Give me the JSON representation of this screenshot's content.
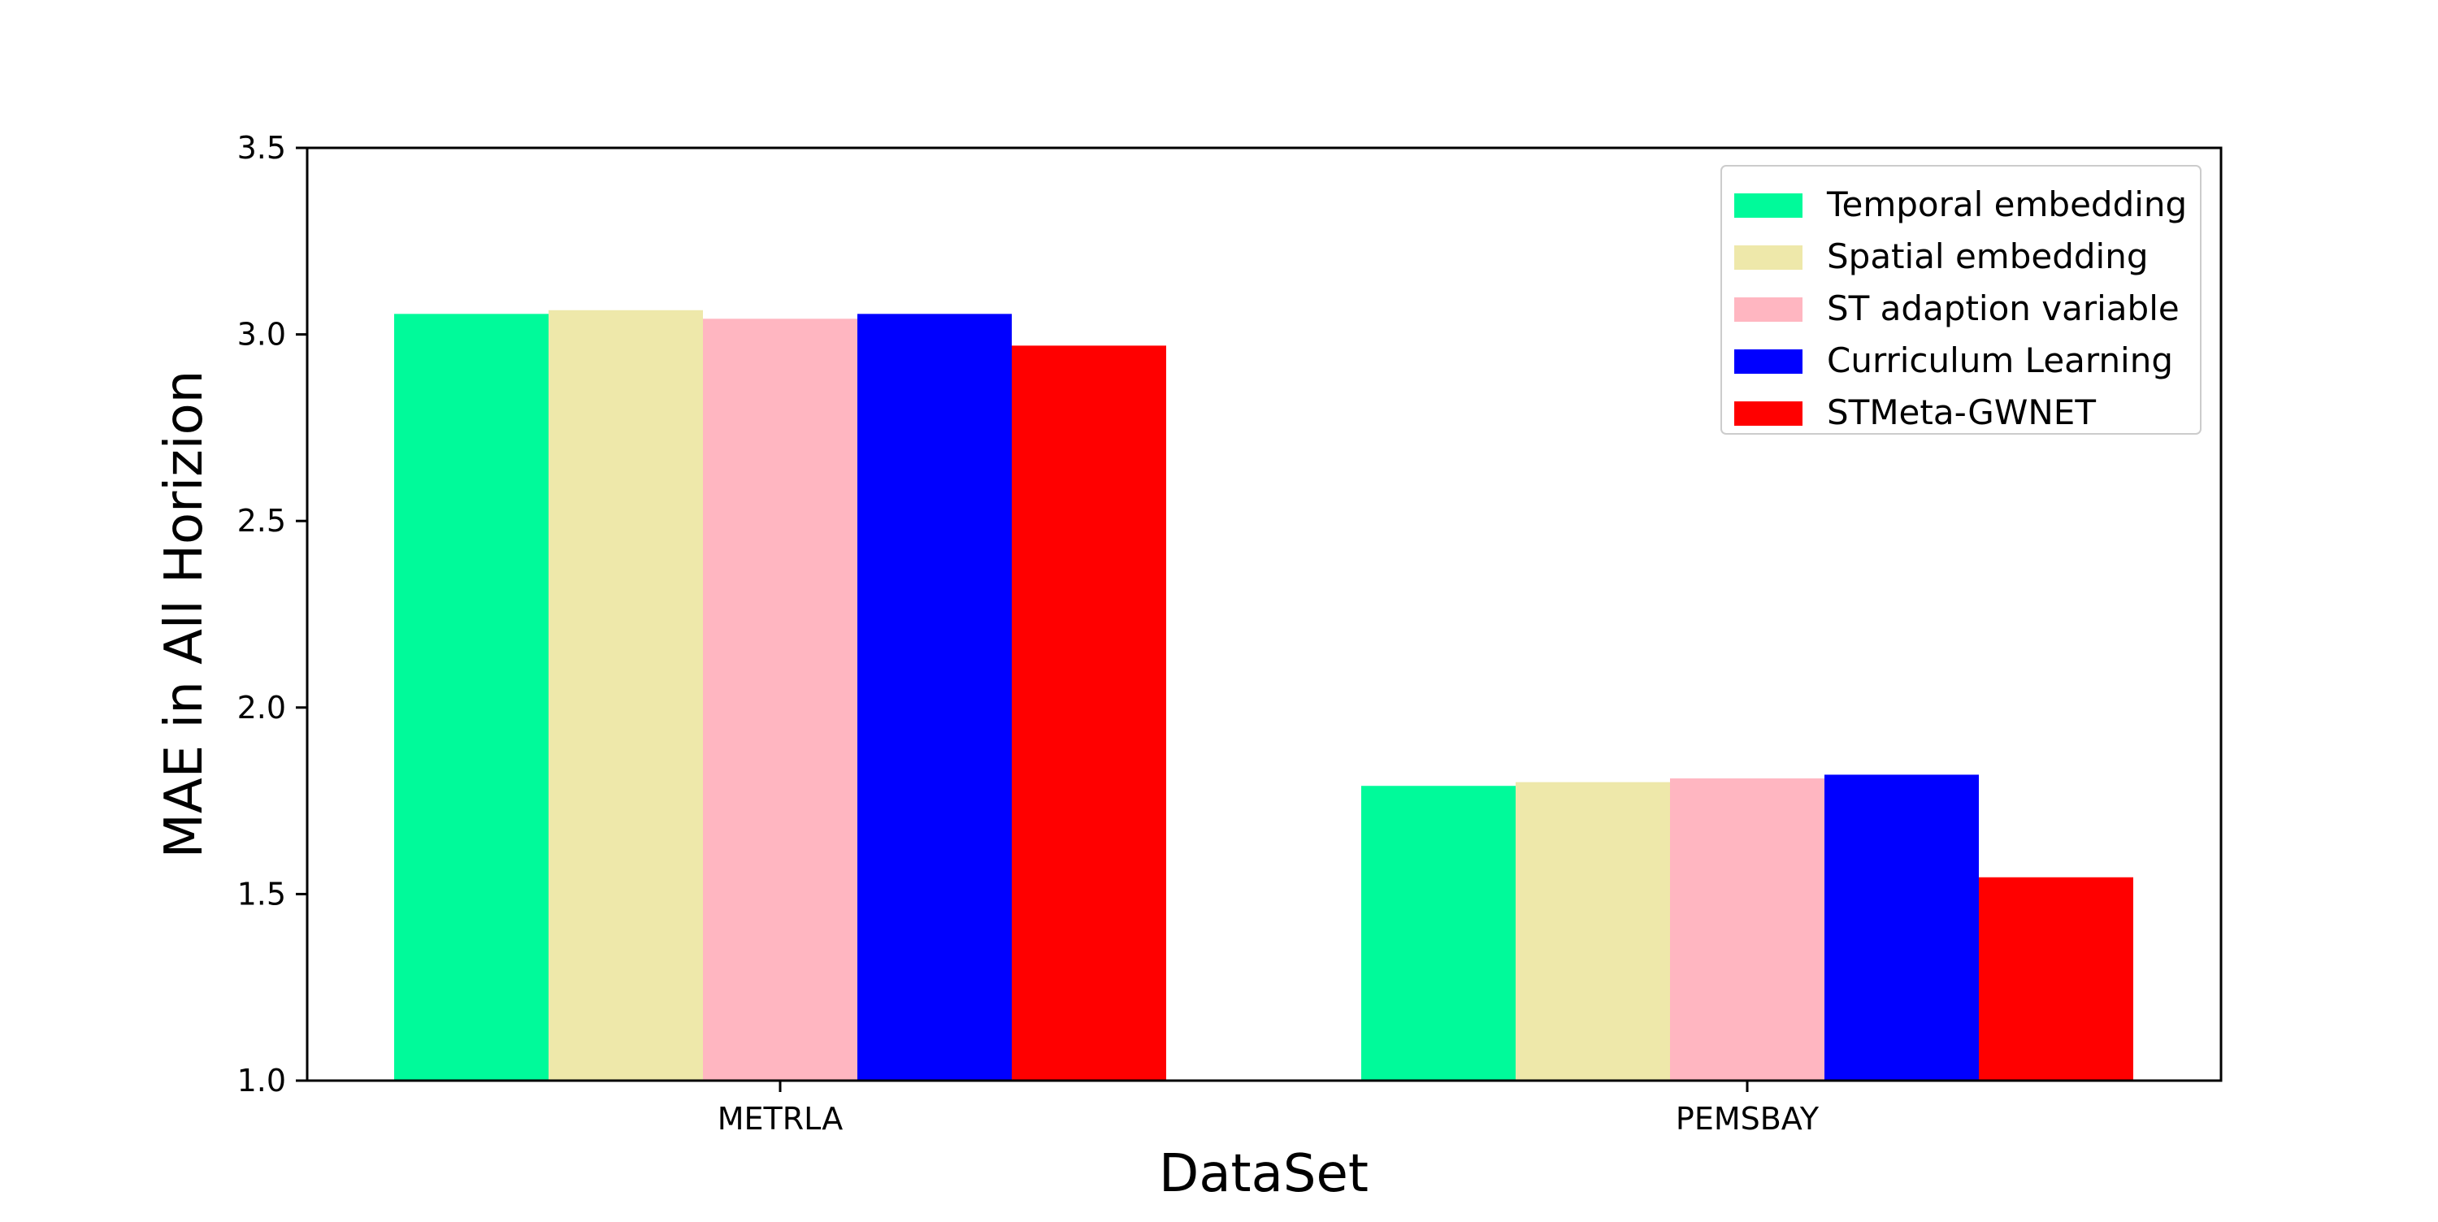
{
  "chart_data": {
    "type": "bar",
    "title": "",
    "xlabel": "DataSet",
    "ylabel": "MAE in All Horizion",
    "categories": [
      "METRLA",
      "PEMSBAY"
    ],
    "ylim": [
      1.0,
      3.5
    ],
    "yticks": [
      "1.0",
      "1.5",
      "2.0",
      "2.5",
      "3.0",
      "3.5"
    ],
    "grid": false,
    "legend_position": "top-right",
    "series": [
      {
        "name": "Temporal embedding",
        "color": "#00fa9a",
        "values": [
          3.055,
          1.79
        ]
      },
      {
        "name": "Spatial embedding",
        "color": "#eee8aa",
        "values": [
          3.065,
          1.8
        ]
      },
      {
        "name": "ST adaption variable",
        "color": "#ffb6c1",
        "values": [
          3.042,
          1.81
        ]
      },
      {
        "name": "Curriculum Learning",
        "color": "#0000ff",
        "values": [
          3.055,
          1.82
        ]
      },
      {
        "name": "STMeta-GWNET",
        "color": "#ff0000",
        "values": [
          2.97,
          1.545
        ]
      }
    ]
  }
}
